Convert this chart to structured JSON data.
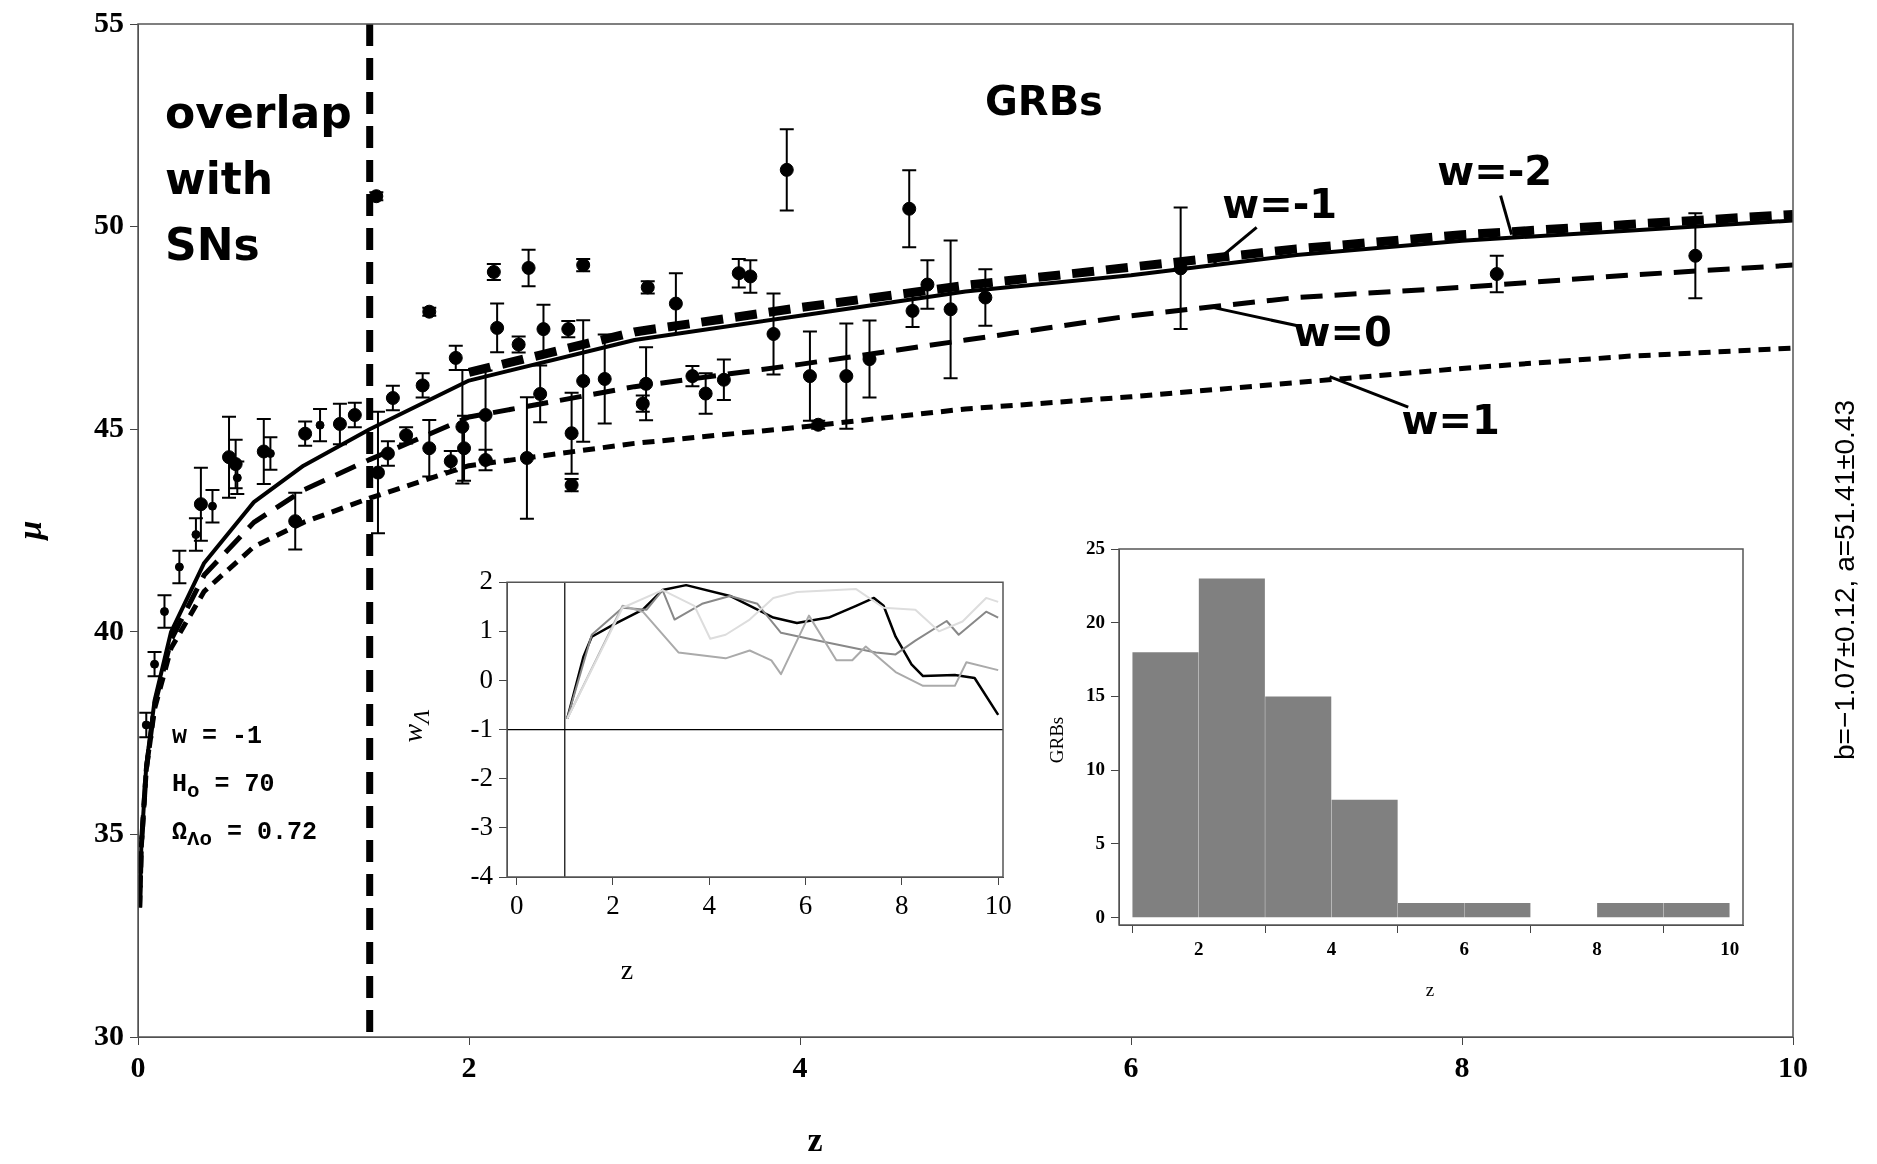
{
  "chart_data": [
    {
      "type": "scatter",
      "xlabel": "z",
      "ylabel": "μ",
      "xlim": [
        0,
        10
      ],
      "ylim": [
        30,
        55
      ],
      "xticks": [
        0,
        2,
        4,
        6,
        8,
        10
      ],
      "yticks": [
        30,
        35,
        40,
        45,
        50,
        55
      ],
      "ref_lines": [
        {
          "axis": "x",
          "value": 1.4,
          "line_style": "dashed",
          "color": "#000000"
        }
      ],
      "annotations": [
        "overlap with SNs",
        "GRBs",
        "w = -1",
        "H$_{o}$ = 70",
        "Ω$_{Λo}$ = 0.72",
        "b=−1.07±0.12, a=51.41±0.43",
        {
          "text": "w=-1",
          "x": 6.5,
          "y": 49.1
        },
        {
          "text": "w=-2",
          "x": 8.3,
          "y": 49.8
        },
        {
          "text": "w=0",
          "x": 6.5,
          "y": 48.0
        },
        {
          "text": "w=1",
          "x": 7.2,
          "y": 46.3
        }
      ],
      "series": [
        {
          "type": "scatter",
          "marker": "circle",
          "color": "#000000",
          "x": [
            0.05,
            0.1,
            0.16,
            0.25,
            0.35,
            0.45,
            0.6,
            0.8,
            1.1
          ],
          "values": [
            37.7,
            39.2,
            40.5,
            41.6,
            42.4,
            43.1,
            43.8,
            44.4,
            45.1
          ],
          "errors": [
            0.3,
            0.3,
            0.4,
            0.4,
            0.4,
            0.4,
            0.4,
            0.4,
            0.4
          ]
        },
        {
          "type": "scatter",
          "marker": "circle",
          "color": "#000000",
          "x": [
            1.44,
            1.76,
            2.15,
            2.36,
            2.69,
            2.17,
            2.3,
            2.45,
            2.6,
            3.08,
            3.25,
            3.63,
            3.7,
            3.92,
            4.66,
            4.77,
            4.68,
            4.91,
            5.12,
            3.84,
            4.06,
            4.28,
            4.42,
            4.11,
            3.54,
            3.43,
            3.35,
            3.07,
            3.05,
            2.82,
            2.69,
            2.62,
            2.62,
            2.43,
            2.35,
            2.1,
            2.1,
            1.96,
            1.97,
            1.89,
            1.92,
            1.76,
            1.62,
            1.72,
            1.54,
            1.51,
            1.45,
            0.95,
            0.55,
            0.59,
            0.76,
            1.01,
            0.38,
            1.22,
            1.31,
            6.3,
            8.21,
            9.41
          ],
          "values": [
            50.75,
            47.9,
            48.88,
            48.98,
            49.05,
            47.5,
            47.09,
            47.47,
            47.47,
            48.5,
            48.1,
            48.85,
            48.77,
            51.4,
            50.44,
            48.57,
            47.92,
            47.96,
            48.25,
            47.35,
            46.31,
            46.31,
            46.73,
            45.11,
            46.22,
            45.88,
            46.31,
            46.12,
            45.63,
            46.24,
            46.19,
            44.9,
            43.62,
            45.87,
            44.29,
            45.35,
            44.24,
            45.06,
            44.53,
            44.21,
            46.76,
            44.53,
            44.85,
            46.08,
            45.77,
            44.4,
            43.93,
            42.73,
            44.31,
            44.14,
            44.45,
            44.89,
            43.15,
            45.13,
            45.35,
            48.97,
            48.83,
            49.28
          ],
          "errors": [
            0.1,
            0.1,
            0.2,
            0.45,
            0.15,
            0.6,
            0.2,
            0.6,
            0.2,
            0.15,
            0.75,
            0.35,
            0.4,
            1.0,
            0.95,
            0.6,
            0.4,
            1.7,
            0.7,
            1.0,
            1.1,
            1.3,
            0.95,
            0.1,
            0.5,
            0.5,
            0.25,
            0.9,
            0.2,
            1.1,
            1.5,
            1.0,
            0.15,
            0.7,
            1.5,
            1.1,
            0.25,
            1.4,
            0.8,
            0.25,
            0.3,
            0.7,
            0.2,
            0.3,
            0.3,
            0.3,
            1.5,
            0.7,
            1.0,
            0.6,
            0.8,
            0.3,
            0.9,
            0.5,
            0.3,
            1.5,
            0.45,
            1.05
          ]
        },
        {
          "type": "line",
          "marker": "none",
          "color": "#000000",
          "line_style": "solid",
          "x": [
            0.01,
            0.02,
            0.05,
            0.1,
            0.2,
            0.4,
            0.7,
            1,
            1.4,
            2,
            3,
            4,
            5,
            6,
            7,
            8,
            9,
            10
          ],
          "values": [
            33.2,
            34.7,
            36.7,
            38.3,
            40.0,
            41.7,
            43.2,
            44.1,
            45.0,
            46.2,
            47.2,
            47.8,
            48.4,
            48.8,
            49.3,
            49.65,
            49.9,
            50.15
          ]
        },
        {
          "type": "line",
          "marker": "none",
          "color": "#000000",
          "line_style": "dashed",
          "x": [
            2,
            3,
            4,
            5,
            6,
            7,
            8,
            9,
            10
          ],
          "values": [
            46.4,
            47.4,
            48.0,
            48.55,
            49.0,
            49.45,
            49.8,
            50.05,
            50.3
          ]
        },
        {
          "type": "line",
          "marker": "none",
          "color": "#000000",
          "line_style": "dashed",
          "x": [
            0.01,
            0.02,
            0.05,
            0.1,
            0.2,
            0.4,
            0.7,
            1,
            1.4,
            2,
            3,
            4,
            5,
            6,
            7,
            8,
            9,
            10
          ],
          "values": [
            33.2,
            34.7,
            36.6,
            38.2,
            39.8,
            41.4,
            42.7,
            43.5,
            44.25,
            45.3,
            46.05,
            46.6,
            47.2,
            47.8,
            48.25,
            48.5,
            48.8,
            49.05
          ]
        },
        {
          "type": "line",
          "marker": "none",
          "color": "#000000",
          "line_style": "dotted",
          "x": [
            0.01,
            0.02,
            0.05,
            0.1,
            0.2,
            0.4,
            0.7,
            1,
            1.4,
            2,
            3,
            4,
            5,
            6,
            7,
            8,
            9,
            10
          ],
          "values": [
            33.2,
            34.7,
            36.6,
            38.1,
            39.6,
            41.0,
            42.1,
            42.7,
            43.3,
            44.1,
            44.65,
            45.05,
            45.5,
            45.8,
            46.15,
            46.5,
            46.8,
            47.0
          ]
        }
      ]
    },
    {
      "type": "line",
      "xlabel": "z",
      "ylabel": "w$_{Λ}$",
      "xlim": [
        -0.2,
        10.1
      ],
      "ylim": [
        -4,
        2
      ],
      "xticks": [
        0,
        2,
        4,
        6,
        8,
        10
      ],
      "yticks": [
        -4,
        -3,
        -2,
        -1,
        0,
        1,
        2
      ],
      "ref_lines": [
        {
          "axis": "y",
          "value": -1,
          "color": "#000000"
        },
        {
          "axis": "x",
          "value": 1,
          "color": "#000000"
        }
      ],
      "series": [
        {
          "color": "#dddddd",
          "x": [
            1.05,
            2.2,
            3.03,
            3.69,
            4.02,
            4.34,
            4.84,
            5.33,
            5.82,
            7.05,
            7.62,
            8.28,
            8.77,
            9.26,
            9.75,
            10.0
          ],
          "values": [
            -0.78,
            1.48,
            1.84,
            1.52,
            0.85,
            0.93,
            1.24,
            1.68,
            1.8,
            1.86,
            1.48,
            1.44,
            1.0,
            1.2,
            1.68,
            1.6
          ]
        },
        {
          "color": "#aaaaaa",
          "x": [
            1.05,
            2.2,
            2.62,
            3.36,
            4.34,
            4.84,
            5.29,
            5.49,
            6.07,
            6.64,
            6.97,
            7.25,
            7.87,
            8.44,
            9.1,
            9.34,
            10.0
          ],
          "values": [
            -0.78,
            1.52,
            1.4,
            0.57,
            0.45,
            0.61,
            0.41,
            0.13,
            1.32,
            0.41,
            0.41,
            0.69,
            0.17,
            -0.11,
            -0.11,
            0.37,
            0.21
          ]
        },
        {
          "color": "#888888",
          "x": [
            1.05,
            1.56,
            2.2,
            2.7,
            3.03,
            3.28,
            3.85,
            4.43,
            5.0,
            5.49,
            6.07,
            7.46,
            7.87,
            8.28,
            8.93,
            9.18,
            9.75,
            10.0
          ],
          "values": [
            -0.78,
            0.93,
            1.48,
            1.44,
            1.84,
            1.24,
            1.56,
            1.72,
            1.56,
            0.97,
            0.85,
            0.57,
            0.53,
            0.81,
            1.21,
            0.93,
            1.4,
            1.28
          ]
        },
        {
          "color": "#000000",
          "x": [
            1.05,
            1.39,
            1.56,
            2.0,
            2.62,
            3.03,
            3.52,
            4.43,
            5.33,
            5.82,
            6.48,
            7.05,
            7.42,
            7.62,
            7.87,
            8.2,
            8.44,
            9.1,
            9.51,
            10.0
          ],
          "values": [
            -0.78,
            0.49,
            0.89,
            1.13,
            1.44,
            1.84,
            1.94,
            1.72,
            1.28,
            1.17,
            1.28,
            1.52,
            1.68,
            1.52,
            0.89,
            0.33,
            0.09,
            0.11,
            0.05,
            -0.7
          ]
        }
      ]
    },
    {
      "type": "histogram",
      "xlabel": "z",
      "ylabel": "GRBs",
      "xlim": [
        0.8,
        10.2
      ],
      "ylim": [
        -0.5,
        25
      ],
      "xticks": [
        2,
        4,
        6,
        8,
        10
      ],
      "yticks": [
        0,
        5,
        10,
        15,
        20,
        25
      ],
      "color": "#808080",
      "bins": [
        1,
        2,
        3,
        4,
        5,
        6,
        7,
        8,
        9,
        10
      ],
      "values": [
        18,
        23,
        15,
        8,
        1,
        1,
        0,
        1,
        1
      ]
    }
  ]
}
